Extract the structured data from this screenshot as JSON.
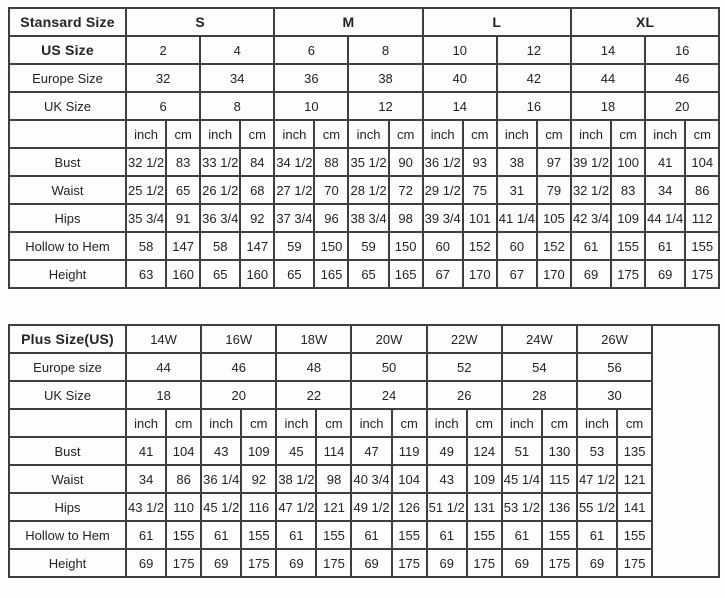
{
  "colors": {
    "border": "#3e3e3e",
    "text": "#232323",
    "background": "#fdfdfd"
  },
  "standard_table": {
    "name": "standard-size-table",
    "corner_label": "Stansard Size",
    "groups_bold": true,
    "size_groups": [
      "S",
      "M",
      "L",
      "XL"
    ],
    "size_rows": [
      {
        "label": "US Size",
        "bold": true,
        "values": [
          "2",
          "4",
          "6",
          "8",
          "10",
          "12",
          "14",
          "16"
        ]
      },
      {
        "label": "Europe Size",
        "bold": false,
        "values": [
          "32",
          "34",
          "36",
          "38",
          "40",
          "42",
          "44",
          "46"
        ]
      },
      {
        "label": "UK Size",
        "bold": false,
        "values": [
          "6",
          "8",
          "10",
          "12",
          "14",
          "16",
          "18",
          "20"
        ]
      }
    ],
    "unit_labels": [
      "inch",
      "cm"
    ],
    "unit_pairs": 8,
    "measure_rows": [
      {
        "label": "Bust",
        "values": [
          "32 1/2",
          "83",
          "33 1/2",
          "84",
          "34 1/2",
          "88",
          "35 1/2",
          "90",
          "36 1/2",
          "93",
          "38",
          "97",
          "39 1/2",
          "100",
          "41",
          "104"
        ]
      },
      {
        "label": "Waist",
        "values": [
          "25 1/2",
          "65",
          "26 1/2",
          "68",
          "27 1/2",
          "70",
          "28 1/2",
          "72",
          "29 1/2",
          "75",
          "31",
          "79",
          "32 1/2",
          "83",
          "34",
          "86"
        ]
      },
      {
        "label": "Hips",
        "values": [
          "35 3/4",
          "91",
          "36 3/4",
          "92",
          "37 3/4",
          "96",
          "38 3/4",
          "98",
          "39 3/4",
          "101",
          "41 1/4",
          "105",
          "42 3/4",
          "109",
          "44 1/4",
          "112"
        ]
      },
      {
        "label": "Hollow to Hem",
        "values": [
          "58",
          "147",
          "58",
          "147",
          "59",
          "150",
          "59",
          "150",
          "60",
          "152",
          "60",
          "152",
          "61",
          "155",
          "61",
          "155"
        ]
      },
      {
        "label": "Height",
        "values": [
          "63",
          "160",
          "65",
          "160",
          "65",
          "165",
          "65",
          "165",
          "67",
          "170",
          "67",
          "170",
          "69",
          "175",
          "69",
          "175"
        ]
      }
    ],
    "trailing_empty_column": false
  },
  "plus_table": {
    "name": "plus-size-table",
    "corner_label": "Plus Size(US)",
    "groups_bold": false,
    "size_groups": [
      "14W",
      "16W",
      "18W",
      "20W",
      "22W",
      "24W",
      "26W"
    ],
    "size_rows": [
      {
        "label": "Europe size",
        "bold": false,
        "values": [
          "44",
          "46",
          "48",
          "50",
          "52",
          "54",
          "56"
        ]
      },
      {
        "label": "UK Size",
        "bold": false,
        "values": [
          "18",
          "20",
          "22",
          "24",
          "26",
          "28",
          "30"
        ]
      }
    ],
    "unit_labels": [
      "inch",
      "cm"
    ],
    "unit_pairs": 7,
    "measure_rows": [
      {
        "label": "Bust",
        "values": [
          "41",
          "104",
          "43",
          "109",
          "45",
          "114",
          "47",
          "119",
          "49",
          "124",
          "51",
          "130",
          "53",
          "135"
        ]
      },
      {
        "label": "Waist",
        "values": [
          "34",
          "86",
          "36 1/4",
          "92",
          "38 1/2",
          "98",
          "40 3/4",
          "104",
          "43",
          "109",
          "45 1/4",
          "115",
          "47 1/2",
          "121"
        ]
      },
      {
        "label": "Hips",
        "values": [
          "43 1/2",
          "110",
          "45 1/2",
          "116",
          "47 1/2",
          "121",
          "49 1/2",
          "126",
          "51 1/2",
          "131",
          "53 1/2",
          "136",
          "55 1/2",
          "141"
        ]
      },
      {
        "label": "Hollow to Hem",
        "values": [
          "61",
          "155",
          "61",
          "155",
          "61",
          "155",
          "61",
          "155",
          "61",
          "155",
          "61",
          "155",
          "61",
          "155"
        ]
      },
      {
        "label": "Height",
        "values": [
          "69",
          "175",
          "69",
          "175",
          "69",
          "175",
          "69",
          "175",
          "69",
          "175",
          "69",
          "175",
          "69",
          "175"
        ]
      }
    ],
    "trailing_empty_column": true
  }
}
